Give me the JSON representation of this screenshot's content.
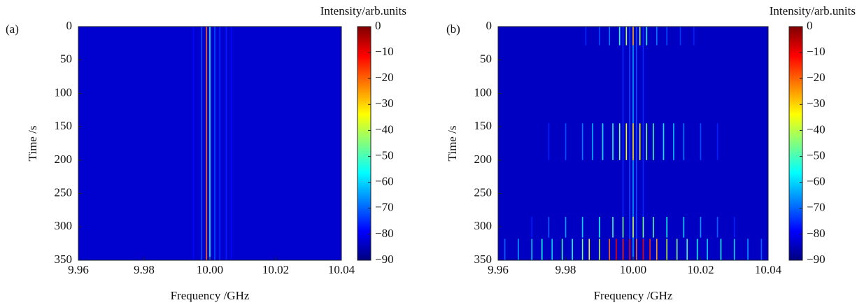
{
  "chart_data": [
    {
      "type": "heatmap",
      "label": "(a)",
      "xlabel": "Frequency /GHz",
      "ylabel": "Time /s",
      "xlim": [
        9.96,
        10.04
      ],
      "xticks": [
        9.96,
        9.98,
        {
          "value": 10,
          "label": "10.00"
        },
        10.02,
        10.04
      ],
      "ylim": [
        0,
        350
      ],
      "yticks": [
        0,
        50,
        100,
        150,
        200,
        250,
        300,
        350
      ],
      "yreverse": true,
      "colorbar": {
        "label": "Intensity/arb.units",
        "lim": [
          -90,
          0
        ],
        "colormap": "jet",
        "ticks": [
          0,
          {
            "value": -10,
            "label": "−10"
          },
          {
            "value": -20,
            "label": "−20"
          },
          {
            "value": -30,
            "label": "−30"
          },
          {
            "value": -40,
            "label": "−40"
          },
          {
            "value": -50,
            "label": "−50"
          },
          {
            "value": -60,
            "label": "−60"
          },
          {
            "value": -70,
            "label": "−70"
          },
          {
            "value": -80,
            "label": "−80"
          },
          {
            "value": -90,
            "label": "−90"
          }
        ]
      },
      "background": -83,
      "stripes": [
        {
          "f": 9.995,
          "t0": 0,
          "t1": 350,
          "v": -78
        },
        {
          "f": 9.9975,
          "t0": 0,
          "t1": 350,
          "v": -72
        },
        {
          "f": 9.999,
          "t0": 0,
          "t1": 350,
          "v": -20
        },
        {
          "f": 10.0,
          "t0": 0,
          "t1": 350,
          "v": -55
        },
        {
          "f": 10.0015,
          "t0": 0,
          "t1": 350,
          "v": -72
        },
        {
          "f": 10.003,
          "t0": 0,
          "t1": 350,
          "v": -75
        },
        {
          "f": 10.005,
          "t0": 0,
          "t1": 350,
          "v": -76
        },
        {
          "f": 10.0065,
          "t0": 0,
          "t1": 350,
          "v": -78
        }
      ]
    },
    {
      "type": "heatmap",
      "label": "(b)",
      "xlabel": "Frequency /GHz",
      "ylabel": "Time /s",
      "xlim": [
        9.96,
        10.04
      ],
      "xticks": [
        9.96,
        9.98,
        {
          "value": 10,
          "label": "10.00"
        },
        10.02,
        10.04
      ],
      "ylim": [
        0,
        350
      ],
      "yticks": [
        0,
        50,
        100,
        150,
        200,
        250,
        300,
        350
      ],
      "yreverse": true,
      "colorbar": {
        "label": "Intensity/arb.units",
        "lim": [
          -90,
          0
        ],
        "colormap": "jet",
        "ticks": [
          0,
          {
            "value": -10,
            "label": "−10"
          },
          {
            "value": -20,
            "label": "−20"
          },
          {
            "value": -30,
            "label": "−30"
          },
          {
            "value": -40,
            "label": "−40"
          },
          {
            "value": -50,
            "label": "−50"
          },
          {
            "value": -60,
            "label": "−60"
          },
          {
            "value": -70,
            "label": "−70"
          },
          {
            "value": -80,
            "label": "−80"
          },
          {
            "value": -90,
            "label": "−90"
          }
        ]
      },
      "background": -84,
      "stripes": [
        {
          "f": 9.997,
          "t0": 0,
          "t1": 350,
          "v": -75
        },
        {
          "f": 9.999,
          "t0": 0,
          "t1": 350,
          "v": -72
        },
        {
          "f": 10.0,
          "t0": 0,
          "t1": 350,
          "v": -65
        },
        {
          "f": 10.001,
          "t0": 0,
          "t1": 350,
          "v": -72
        },
        {
          "f": 10.003,
          "t0": 0,
          "t1": 350,
          "v": -75
        },
        {
          "f": 9.986,
          "t0": 0,
          "t1": 28,
          "v": -75
        },
        {
          "f": 9.99,
          "t0": 0,
          "t1": 28,
          "v": -72
        },
        {
          "f": 9.993,
          "t0": 0,
          "t1": 28,
          "v": -68
        },
        {
          "f": 9.996,
          "t0": 0,
          "t1": 28,
          "v": -55
        },
        {
          "f": 9.998,
          "t0": 0,
          "t1": 28,
          "v": -40
        },
        {
          "f": 10.0,
          "t0": 0,
          "t1": 28,
          "v": -25
        },
        {
          "f": 10.002,
          "t0": 0,
          "t1": 28,
          "v": -40
        },
        {
          "f": 10.004,
          "t0": 0,
          "t1": 28,
          "v": -55
        },
        {
          "f": 10.007,
          "t0": 0,
          "t1": 28,
          "v": -68
        },
        {
          "f": 10.01,
          "t0": 0,
          "t1": 28,
          "v": -72
        },
        {
          "f": 10.014,
          "t0": 0,
          "t1": 28,
          "v": -74
        },
        {
          "f": 10.018,
          "t0": 0,
          "t1": 28,
          "v": -76
        },
        {
          "f": 9.975,
          "t0": 145,
          "t1": 200,
          "v": -76
        },
        {
          "f": 9.98,
          "t0": 145,
          "t1": 200,
          "v": -72
        },
        {
          "f": 9.985,
          "t0": 145,
          "t1": 200,
          "v": -68
        },
        {
          "f": 9.988,
          "t0": 145,
          "t1": 200,
          "v": -62
        },
        {
          "f": 9.991,
          "t0": 145,
          "t1": 200,
          "v": -58
        },
        {
          "f": 9.994,
          "t0": 145,
          "t1": 200,
          "v": -52
        },
        {
          "f": 9.996,
          "t0": 145,
          "t1": 200,
          "v": -45
        },
        {
          "f": 9.998,
          "t0": 145,
          "t1": 200,
          "v": -35
        },
        {
          "f": 10.0,
          "t0": 145,
          "t1": 200,
          "v": -30
        },
        {
          "f": 10.002,
          "t0": 145,
          "t1": 200,
          "v": -35
        },
        {
          "f": 10.004,
          "t0": 145,
          "t1": 200,
          "v": -45
        },
        {
          "f": 10.006,
          "t0": 145,
          "t1": 200,
          "v": -52
        },
        {
          "f": 10.009,
          "t0": 145,
          "t1": 200,
          "v": -58
        },
        {
          "f": 10.012,
          "t0": 145,
          "t1": 200,
          "v": -62
        },
        {
          "f": 10.015,
          "t0": 145,
          "t1": 200,
          "v": -68
        },
        {
          "f": 10.02,
          "t0": 145,
          "t1": 200,
          "v": -72
        },
        {
          "f": 10.025,
          "t0": 145,
          "t1": 200,
          "v": -76
        },
        {
          "f": 9.97,
          "t0": 285,
          "t1": 316,
          "v": -76
        },
        {
          "f": 9.975,
          "t0": 285,
          "t1": 316,
          "v": -70
        },
        {
          "f": 9.98,
          "t0": 285,
          "t1": 316,
          "v": -65
        },
        {
          "f": 9.985,
          "t0": 285,
          "t1": 316,
          "v": -60
        },
        {
          "f": 9.99,
          "t0": 285,
          "t1": 316,
          "v": -55
        },
        {
          "f": 9.994,
          "t0": 285,
          "t1": 316,
          "v": -50
        },
        {
          "f": 9.997,
          "t0": 285,
          "t1": 316,
          "v": -45
        },
        {
          "f": 10.0,
          "t0": 285,
          "t1": 316,
          "v": -40
        },
        {
          "f": 10.003,
          "t0": 285,
          "t1": 316,
          "v": -45
        },
        {
          "f": 10.006,
          "t0": 285,
          "t1": 316,
          "v": -50
        },
        {
          "f": 10.01,
          "t0": 285,
          "t1": 316,
          "v": -55
        },
        {
          "f": 10.015,
          "t0": 285,
          "t1": 316,
          "v": -60
        },
        {
          "f": 10.02,
          "t0": 285,
          "t1": 316,
          "v": -65
        },
        {
          "f": 10.025,
          "t0": 285,
          "t1": 316,
          "v": -70
        },
        {
          "f": 10.03,
          "t0": 285,
          "t1": 316,
          "v": -76
        },
        {
          "f": 9.962,
          "t0": 318,
          "t1": 350,
          "v": -70
        },
        {
          "f": 9.966,
          "t0": 318,
          "t1": 350,
          "v": -65
        },
        {
          "f": 9.97,
          "t0": 318,
          "t1": 350,
          "v": -60
        },
        {
          "f": 9.973,
          "t0": 318,
          "t1": 350,
          "v": -55
        },
        {
          "f": 9.976,
          "t0": 318,
          "t1": 350,
          "v": -60
        },
        {
          "f": 9.979,
          "t0": 318,
          "t1": 350,
          "v": -50
        },
        {
          "f": 9.982,
          "t0": 318,
          "t1": 350,
          "v": -55
        },
        {
          "f": 9.985,
          "t0": 318,
          "t1": 350,
          "v": -45
        },
        {
          "f": 9.987,
          "t0": 318,
          "t1": 350,
          "v": -35
        },
        {
          "f": 9.99,
          "t0": 318,
          "t1": 350,
          "v": -40
        },
        {
          "f": 9.993,
          "t0": 318,
          "t1": 350,
          "v": -20
        },
        {
          "f": 9.995,
          "t0": 318,
          "t1": 350,
          "v": -10
        },
        {
          "f": 9.997,
          "t0": 318,
          "t1": 350,
          "v": -15
        },
        {
          "f": 9.999,
          "t0": 318,
          "t1": 350,
          "v": -10
        },
        {
          "f": 10.001,
          "t0": 318,
          "t1": 350,
          "v": -20
        },
        {
          "f": 10.003,
          "t0": 318,
          "t1": 350,
          "v": -10
        },
        {
          "f": 10.005,
          "t0": 318,
          "t1": 350,
          "v": -15
        },
        {
          "f": 10.007,
          "t0": 318,
          "t1": 350,
          "v": -25
        },
        {
          "f": 10.01,
          "t0": 318,
          "t1": 350,
          "v": -40
        },
        {
          "f": 10.013,
          "t0": 318,
          "t1": 350,
          "v": -45
        },
        {
          "f": 10.016,
          "t0": 318,
          "t1": 350,
          "v": -50
        },
        {
          "f": 10.019,
          "t0": 318,
          "t1": 350,
          "v": -55
        },
        {
          "f": 10.022,
          "t0": 318,
          "t1": 350,
          "v": -60
        },
        {
          "f": 10.026,
          "t0": 318,
          "t1": 350,
          "v": -55
        },
        {
          "f": 10.03,
          "t0": 318,
          "t1": 350,
          "v": -60
        },
        {
          "f": 10.034,
          "t0": 318,
          "t1": 350,
          "v": -65
        },
        {
          "f": 10.038,
          "t0": 318,
          "t1": 350,
          "v": -70
        }
      ]
    }
  ]
}
